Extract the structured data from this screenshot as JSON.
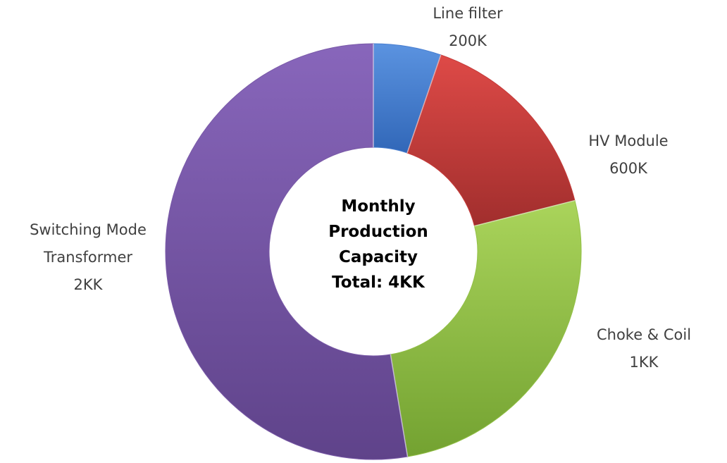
{
  "chart_data": {
    "type": "pie",
    "variant": "donut",
    "start_angle_deg": 0,
    "direction": "clockwise",
    "center_label": [
      "Monthly",
      "Production",
      "Capacity",
      "Total: 4KK"
    ],
    "slices": [
      {
        "label_lines": [
          "Line filter",
          "200K"
        ],
        "value": 200000,
        "color": "#4a7fd0"
      },
      {
        "label_lines": [
          "HV Module",
          "600K"
        ],
        "value": 600000,
        "color": "#c53b3a"
      },
      {
        "label_lines": [
          "Choke & Coil",
          "1KK"
        ],
        "value": 1000000,
        "color": "#93c047"
      },
      {
        "label_lines": [
          "Switching Mode",
          "Transformer",
          "2KK"
        ],
        "value": 2000000,
        "color": "#7a5aa8"
      }
    ]
  }
}
